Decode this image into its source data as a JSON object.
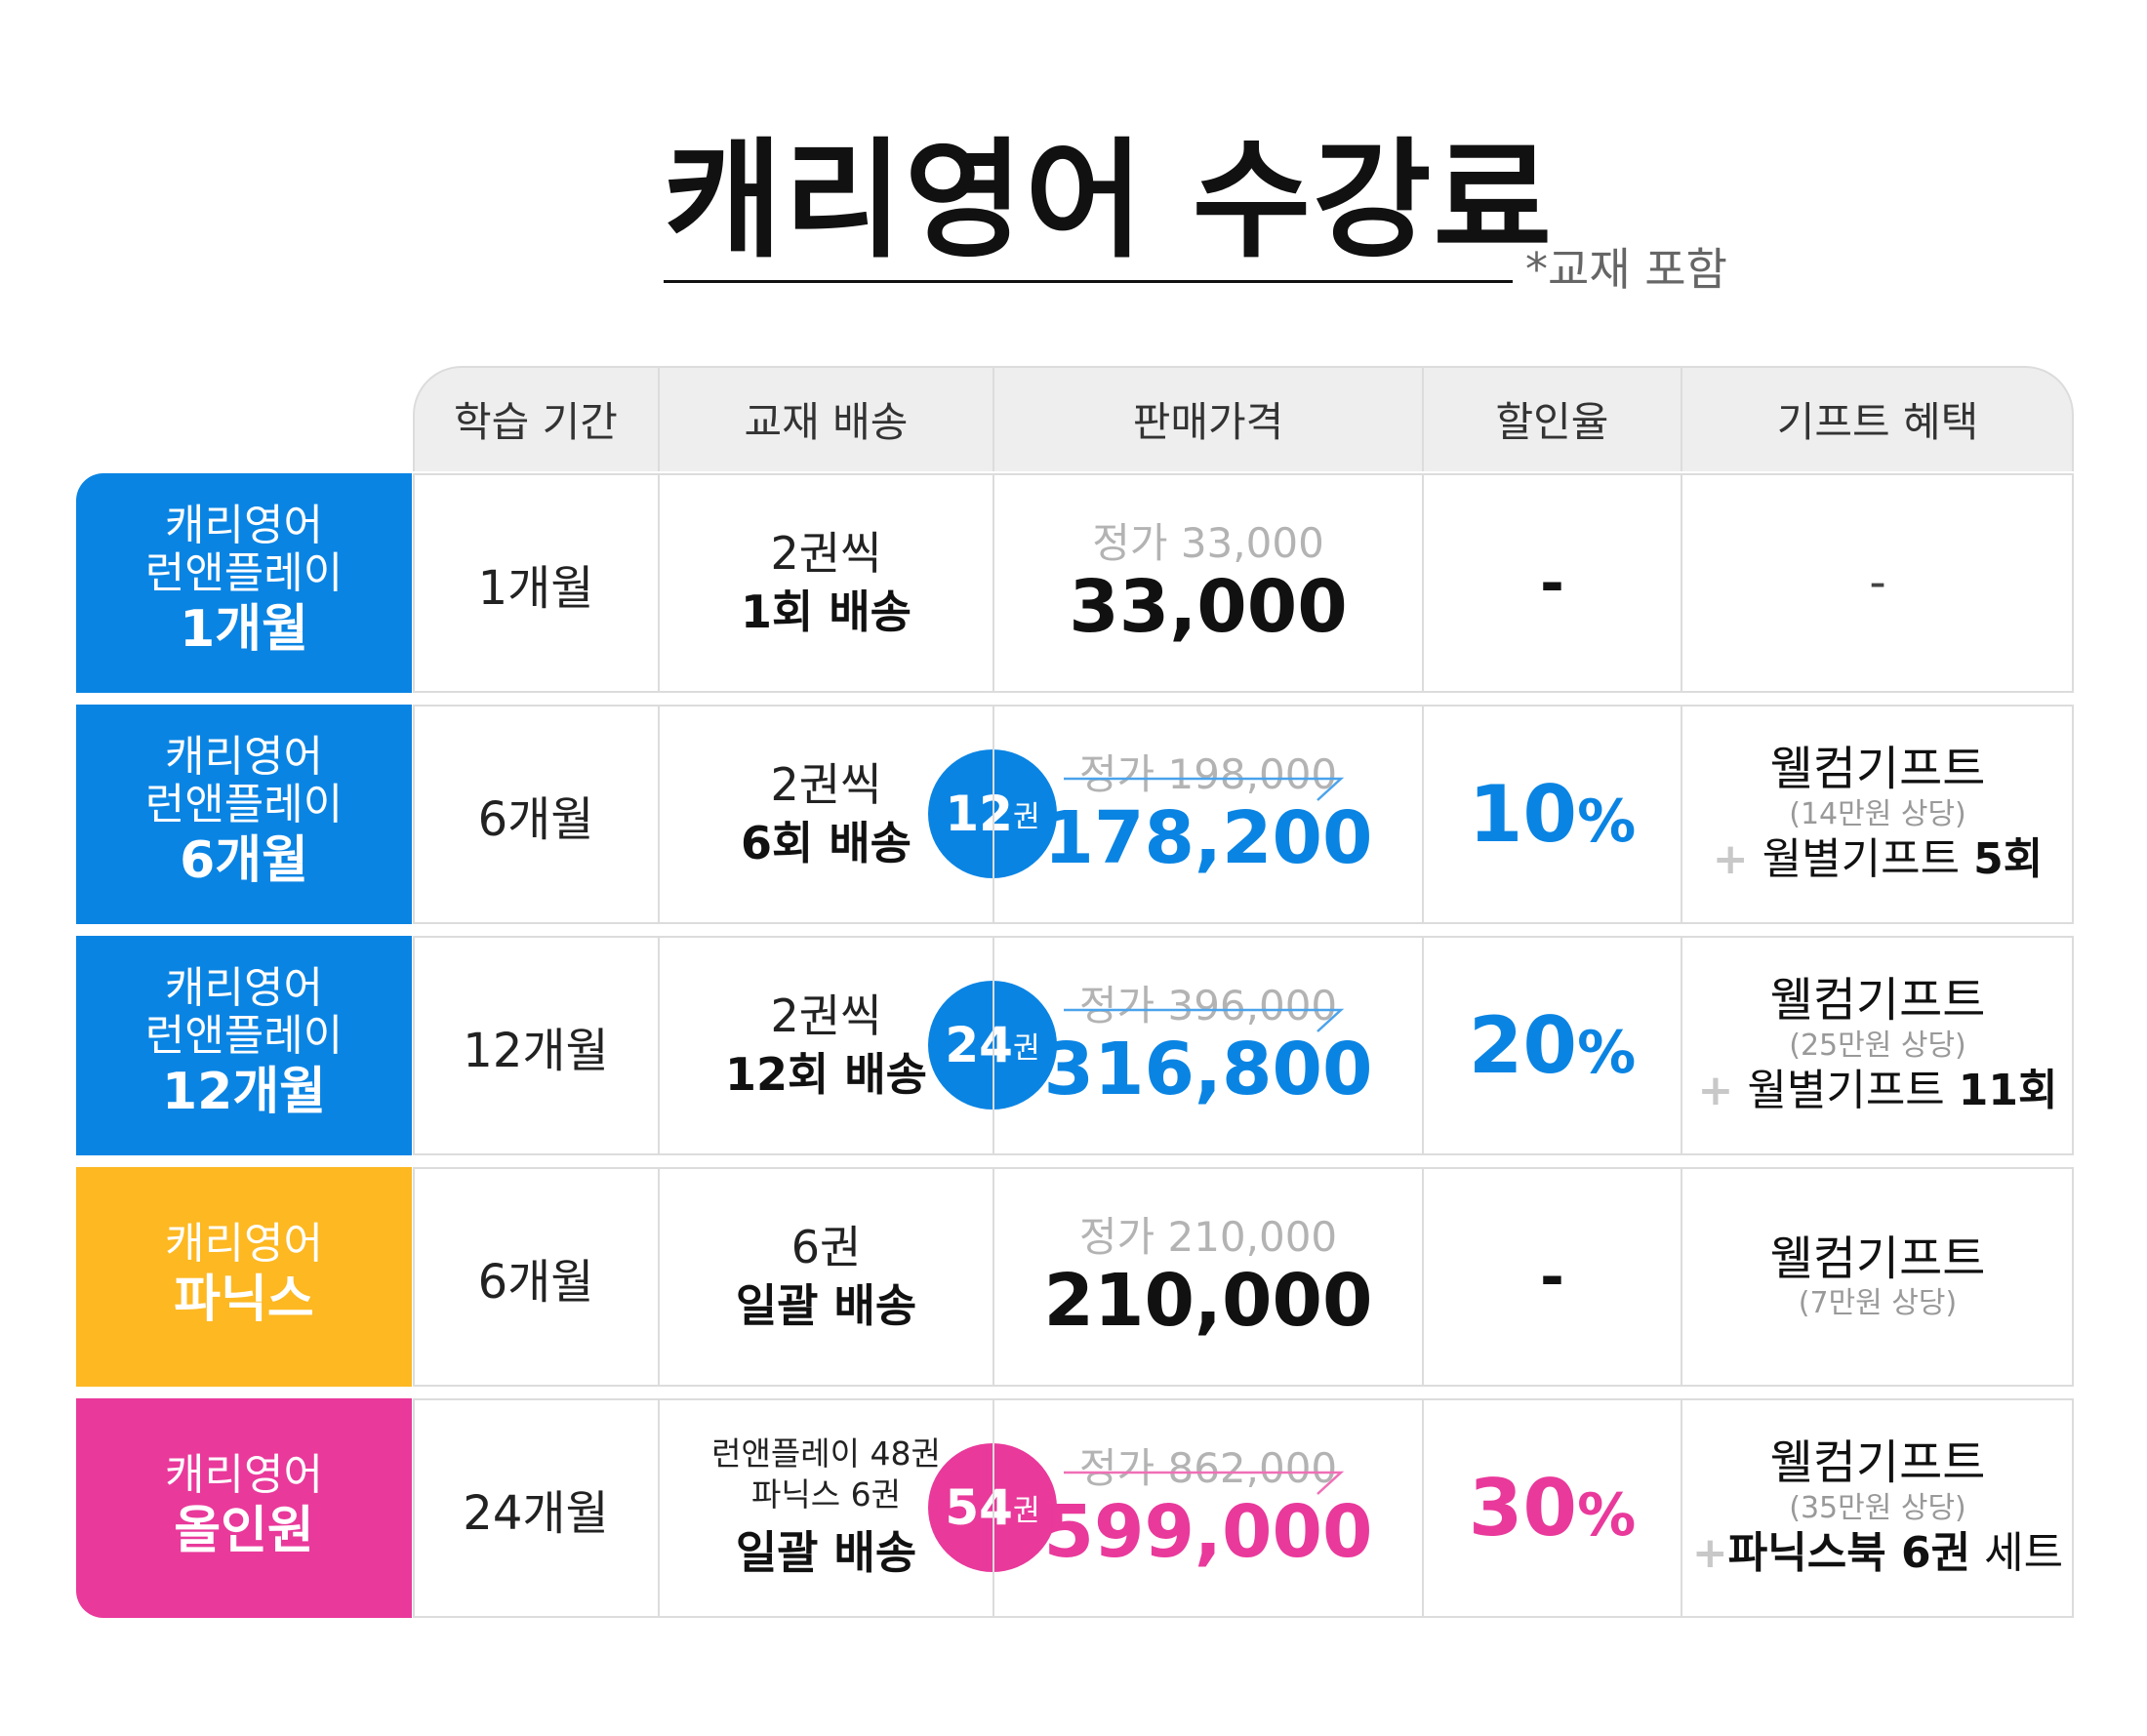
{
  "title": "캐리영어 수강료",
  "note": "*교재 포함",
  "headers": [
    "학습 기간",
    "교재 배송",
    "판매가격",
    "할인율",
    "기프트 혜택"
  ],
  "colors": {
    "blue": "#0a84e3",
    "yellow": "#fdb822",
    "pink": "#e9399b",
    "gray_text": "#b3b3b3"
  },
  "rows": [
    {
      "label_line1": "캐리영어",
      "label_line2": "런앤플레이",
      "label_bold": "1개월",
      "period": "1개월",
      "ship_line1": "2권씩",
      "ship_line2": "1회 배송",
      "orig_price": "정가 33,000",
      "price": "33,000",
      "discount": "-",
      "gift": "-"
    },
    {
      "label_line1": "캐리영어",
      "label_line2": "런앤플레이",
      "label_bold": "6개월",
      "period": "6개월",
      "ship_line1": "2권씩",
      "ship_line2": "6회 배송",
      "badge_num": "12",
      "badge_unit": "권",
      "orig_price": "정가 198,000",
      "price": "178,200",
      "discount_num": "10",
      "discount_pct": "%",
      "gift_title": "웰컴기프트",
      "gift_value": "(14만원 상당)",
      "gift_plus": "+",
      "gift_extra": "월별기프트",
      "gift_extra_bold": "5회"
    },
    {
      "label_line1": "캐리영어",
      "label_line2": "런앤플레이",
      "label_bold": "12개월",
      "period": "12개월",
      "ship_line1": "2권씩",
      "ship_line2": "12회 배송",
      "badge_num": "24",
      "badge_unit": "권",
      "orig_price": "정가 396,000",
      "price": "316,800",
      "discount_num": "20",
      "discount_pct": "%",
      "gift_title": "웰컴기프트",
      "gift_value": "(25만원 상당)",
      "gift_plus": "+",
      "gift_extra": "월별기프트",
      "gift_extra_bold": "11회"
    },
    {
      "label_line1": "캐리영어",
      "label_bold": "파닉스",
      "period": "6개월",
      "ship_line1": "6권",
      "ship_line2": "일괄 배송",
      "orig_price": "정가 210,000",
      "price": "210,000",
      "discount": "-",
      "gift_title": "웰컴기프트",
      "gift_value": "(7만원 상당)"
    },
    {
      "label_line1": "캐리영어",
      "label_bold": "올인원",
      "period": "24개월",
      "ship_small1": "런앤플레이 48권",
      "ship_small2": "파닉스 6권",
      "ship_line2": "일괄 배송",
      "badge_num": "54",
      "badge_unit": "권",
      "orig_price": "정가 862,000",
      "price": "599,000",
      "discount_num": "30",
      "discount_pct": "%",
      "gift_title": "웰컴기프트",
      "gift_value": "(35만원 상당)",
      "gift_plus": "+",
      "gift_extra_bold": "파닉스북 6권",
      "gift_extra_tail": "세트"
    }
  ]
}
